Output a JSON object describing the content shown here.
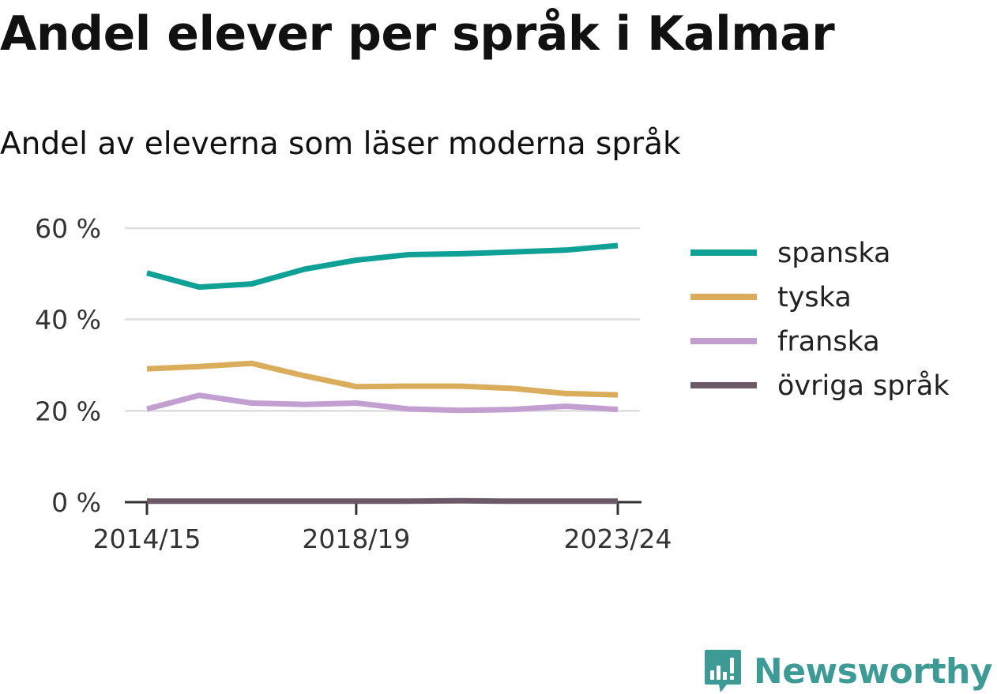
{
  "title": "Andel elever per språk i Kalmar",
  "subtitle": "Andel av eleverna som läser moderna språk",
  "brand": "Newsworthy",
  "chart_data": {
    "type": "line",
    "x": [
      "2014/15",
      "2015/16",
      "2016/17",
      "2017/18",
      "2018/19",
      "2019/20",
      "2020/21",
      "2021/22",
      "2022/23",
      "2023/24"
    ],
    "xticks": [
      "2014/15",
      "2018/19",
      "2023/24"
    ],
    "yticks": [
      0,
      20,
      40,
      60
    ],
    "ytick_labels": [
      "0 %",
      "20 %",
      "40 %",
      "60 %"
    ],
    "ylim": [
      0,
      60
    ],
    "grid": true,
    "legend_position": "right",
    "series": [
      {
        "name": "spanska",
        "color": "#0fa096",
        "values": [
          50.2,
          47.1,
          47.8,
          51.0,
          53.0,
          54.2,
          54.4,
          54.8,
          55.2,
          56.2
        ]
      },
      {
        "name": "tyska",
        "color": "#d9ad5b",
        "values": [
          29.2,
          29.7,
          30.4,
          27.7,
          25.3,
          25.4,
          25.4,
          24.9,
          23.8,
          23.5
        ]
      },
      {
        "name": "franska",
        "color": "#c29fd0",
        "values": [
          20.4,
          23.4,
          21.7,
          21.4,
          21.7,
          20.4,
          20.1,
          20.3,
          21.0,
          20.3
        ]
      },
      {
        "name": "övriga språk",
        "color": "#6b5967",
        "values": [
          0.2,
          0.2,
          0.2,
          0.2,
          0.2,
          0.2,
          0.3,
          0.2,
          0.2,
          0.2
        ]
      }
    ]
  }
}
